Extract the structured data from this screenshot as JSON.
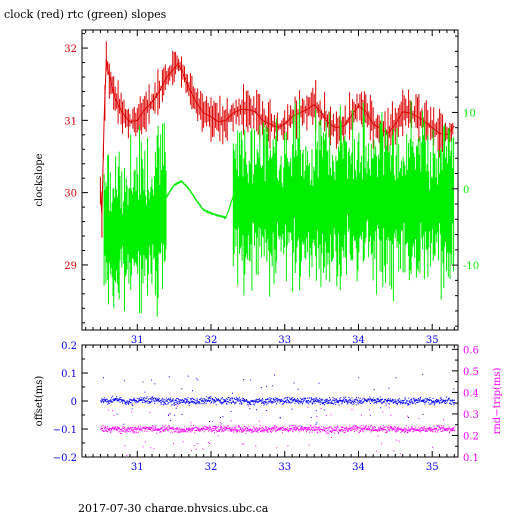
{
  "page": {
    "title": "clock (red) rtc (green) slopes",
    "footer": "2017-07-30  charge.physics.ubc.ca"
  },
  "colors": {
    "red": "#dd0000",
    "green": "#00ee00",
    "blue": "#0000ff",
    "magenta": "#ff00ff",
    "black": "#000000"
  },
  "chart_data": [
    {
      "type": "line",
      "title": "clock (red) rtc (green) slopes",
      "xlabel": "",
      "ylabel": "clockslope",
      "y2label": "",
      "xlim": [
        30.25,
        35.35
      ],
      "ylim": [
        28.1,
        32.25
      ],
      "y2lim": [
        -18.5,
        20.8
      ],
      "x_ticks": [
        "31",
        "32",
        "33",
        "34",
        "35"
      ],
      "y_ticks": [
        "29",
        "30",
        "31",
        "32"
      ],
      "y2_ticks": [
        "-10",
        "0",
        "10"
      ],
      "grid": false,
      "series": [
        {
          "axis": "left",
          "color": "red",
          "x": [
            30.5,
            30.52,
            30.55,
            30.58,
            30.6,
            30.65,
            30.7,
            30.8,
            30.9,
            31.0,
            31.1,
            31.2,
            31.3,
            31.4,
            31.5,
            31.55,
            31.6,
            31.7,
            31.8,
            31.9,
            32.0,
            32.1,
            32.2,
            32.3,
            32.4,
            32.5,
            32.6,
            32.7,
            32.8,
            32.9,
            33.0,
            33.1,
            33.2,
            33.3,
            33.4,
            33.5,
            33.6,
            33.7,
            33.8,
            33.9,
            34.0,
            34.1,
            34.2,
            34.3,
            34.4,
            34.5,
            34.6,
            34.7,
            34.8,
            34.9,
            35.0,
            35.1,
            35.2,
            35.3
          ],
          "y": [
            30.0,
            29.7,
            31.0,
            31.85,
            31.7,
            31.5,
            31.3,
            31.1,
            30.98,
            31.0,
            31.15,
            31.25,
            31.4,
            31.6,
            31.72,
            31.78,
            31.7,
            31.45,
            31.25,
            31.1,
            31.05,
            30.98,
            31.0,
            31.1,
            31.15,
            31.15,
            31.12,
            31.0,
            30.95,
            30.9,
            30.95,
            31.05,
            31.1,
            31.15,
            31.22,
            31.1,
            30.95,
            30.9,
            30.92,
            31.05,
            31.2,
            31.12,
            30.95,
            30.88,
            30.82,
            30.95,
            31.12,
            31.1,
            31.05,
            30.98,
            30.9,
            30.82,
            30.8,
            30.92
          ]
        },
        {
          "axis": "right",
          "color": "green",
          "x": [
            30.55,
            30.6,
            30.7,
            30.8,
            30.9,
            31.0,
            31.1,
            31.2,
            31.3,
            31.4,
            31.5,
            31.6,
            31.7,
            31.8,
            31.9,
            32.0,
            32.1,
            32.2,
            32.25,
            32.3,
            32.4,
            32.5,
            32.6,
            32.7,
            32.8,
            32.9,
            33.0,
            33.1,
            33.2,
            33.3,
            33.4,
            33.5,
            33.6,
            33.7,
            33.8,
            33.9,
            34.0,
            34.1,
            34.2,
            34.3,
            34.4,
            34.5,
            34.6,
            34.7,
            34.8,
            34.9,
            35.0,
            35.1,
            35.2,
            35.3
          ],
          "y": [
            -5.0,
            -5.5,
            -5.0,
            -5.5,
            -5.2,
            -4.5,
            -4.8,
            -4.2,
            -3.0,
            -1.0,
            0.5,
            1.0,
            0.0,
            -1.5,
            -2.8,
            -3.2,
            -3.5,
            -3.8,
            -2.5,
            -1.0,
            -1.5,
            -2.0,
            -1.8,
            -1.5,
            -2.2,
            -1.5,
            -2.0,
            -1.0,
            -1.8,
            -2.5,
            -2.0,
            -1.2,
            -1.8,
            -2.2,
            -1.0,
            -1.5,
            -2.5,
            -1.5,
            -1.0,
            -2.0,
            -1.2,
            -1.8,
            -2.2,
            -1.5,
            -1.0,
            -2.0,
            -2.5,
            -1.5,
            -1.8,
            -2.0
          ]
        }
      ]
    },
    {
      "type": "scatter",
      "title": "",
      "xlabel": "",
      "ylabel": "offset(ms)",
      "y2label": "rnd−trip(ms)",
      "xlim": [
        30.25,
        35.35
      ],
      "ylim": [
        -0.2,
        0.2
      ],
      "y2lim": [
        0.1,
        0.62
      ],
      "x_ticks": [
        "31",
        "32",
        "33",
        "34",
        "35"
      ],
      "y_ticks": [
        "−0.2",
        "−0.1",
        "0",
        "0.1",
        "0.2"
      ],
      "y2_ticks": [
        "0.1",
        "0.2",
        "0.3",
        "0.4",
        "0.5",
        "0.6"
      ],
      "grid": false,
      "series": [
        {
          "axis": "left",
          "color": "blue",
          "x": [
            30.5,
            30.6,
            30.7,
            30.8,
            30.9,
            31.0,
            31.2,
            31.4,
            31.6,
            31.8,
            32.0,
            32.2,
            32.4,
            32.6,
            32.8,
            33.0,
            33.2,
            33.4,
            33.6,
            33.8,
            34.0,
            34.2,
            34.4,
            34.6,
            34.8,
            35.0,
            35.2,
            35.3
          ],
          "y": [
            0.0,
            0.0,
            0.005,
            0.0,
            -0.002,
            0.0,
            0.003,
            0.0,
            -0.003,
            0.0,
            0.002,
            0.0,
            0.0,
            -0.002,
            0.0,
            0.002,
            0.0,
            0.0,
            -0.002,
            0.0,
            0.0,
            0.002,
            0.0,
            -0.003,
            0.0,
            0.0,
            0.002,
            0.0
          ],
          "spread": 0.012
        },
        {
          "axis": "right",
          "color": "magenta",
          "x": [
            30.5,
            30.6,
            30.7,
            30.8,
            30.9,
            31.0,
            31.2,
            31.4,
            31.6,
            31.8,
            32.0,
            32.2,
            32.4,
            32.6,
            32.8,
            33.0,
            33.2,
            33.4,
            33.6,
            33.8,
            34.0,
            34.2,
            34.4,
            34.6,
            34.8,
            35.0,
            35.2,
            35.3
          ],
          "y": [
            0.23,
            0.23,
            0.23,
            0.225,
            0.23,
            0.23,
            0.23,
            0.23,
            0.225,
            0.23,
            0.23,
            0.23,
            0.23,
            0.225,
            0.23,
            0.23,
            0.23,
            0.23,
            0.225,
            0.23,
            0.23,
            0.23,
            0.23,
            0.225,
            0.23,
            0.23,
            0.23,
            0.23
          ],
          "spread": 0.015
        }
      ]
    }
  ]
}
